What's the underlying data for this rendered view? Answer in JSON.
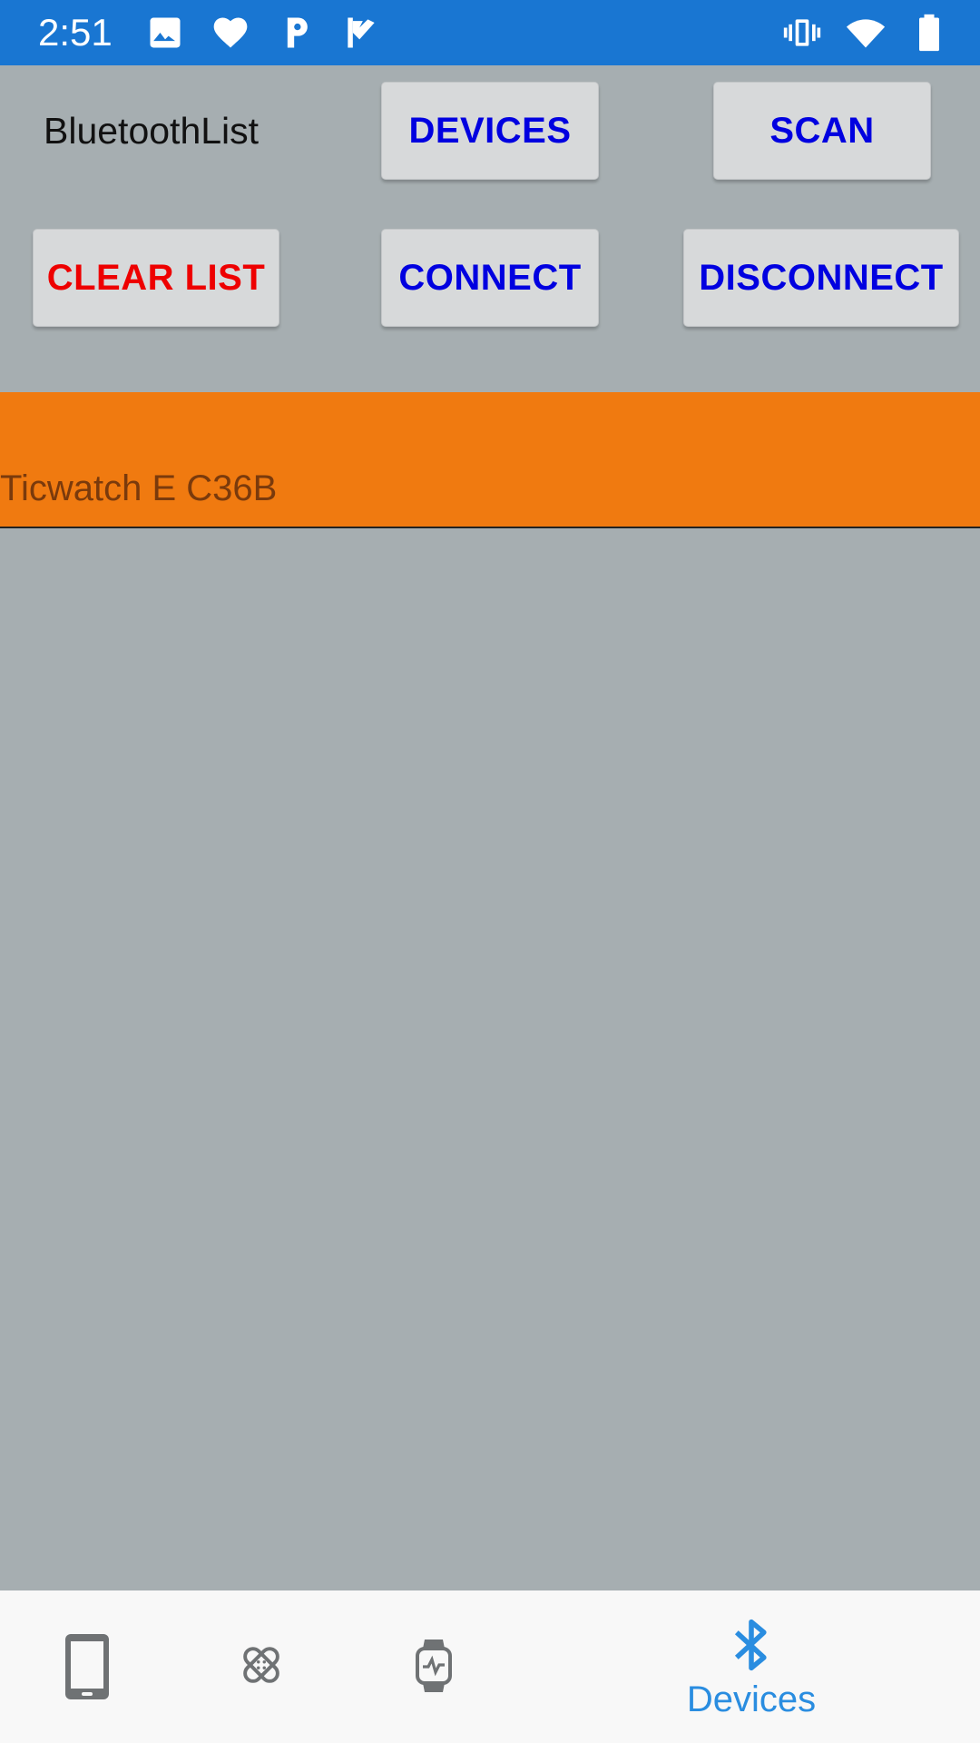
{
  "status_bar": {
    "time": "2:51",
    "left_icons": [
      "image-icon",
      "heart-icon",
      "p-app-icon",
      "check-flag-icon"
    ],
    "right_icons": [
      "vibrate-icon",
      "wifi-icon",
      "battery-icon"
    ]
  },
  "header": {
    "app_label": "BluetoothList",
    "buttons": {
      "devices": "DEVICES",
      "scan": "SCAN",
      "clear_list": "CLEAR LIST",
      "connect": "CONNECT",
      "disconnect": "DISCONNECT"
    }
  },
  "device_list": {
    "items": [
      {
        "name": "Ticwatch E C36B",
        "selected": true
      }
    ]
  },
  "bottom_nav": {
    "items": [
      {
        "icon": "phone-icon",
        "label": ""
      },
      {
        "icon": "bandage-icon",
        "label": ""
      },
      {
        "icon": "smartwatch-icon",
        "label": ""
      },
      {
        "icon": "bluetooth-icon",
        "label": "Devices",
        "active": true
      }
    ]
  },
  "colors": {
    "status_bar": "#1976d2",
    "background": "#a6aeb1",
    "selected_row": "#f07a10",
    "button_text": "#0000e0",
    "clear_button_text": "#ee0000",
    "nav_active": "#2a8de0"
  }
}
